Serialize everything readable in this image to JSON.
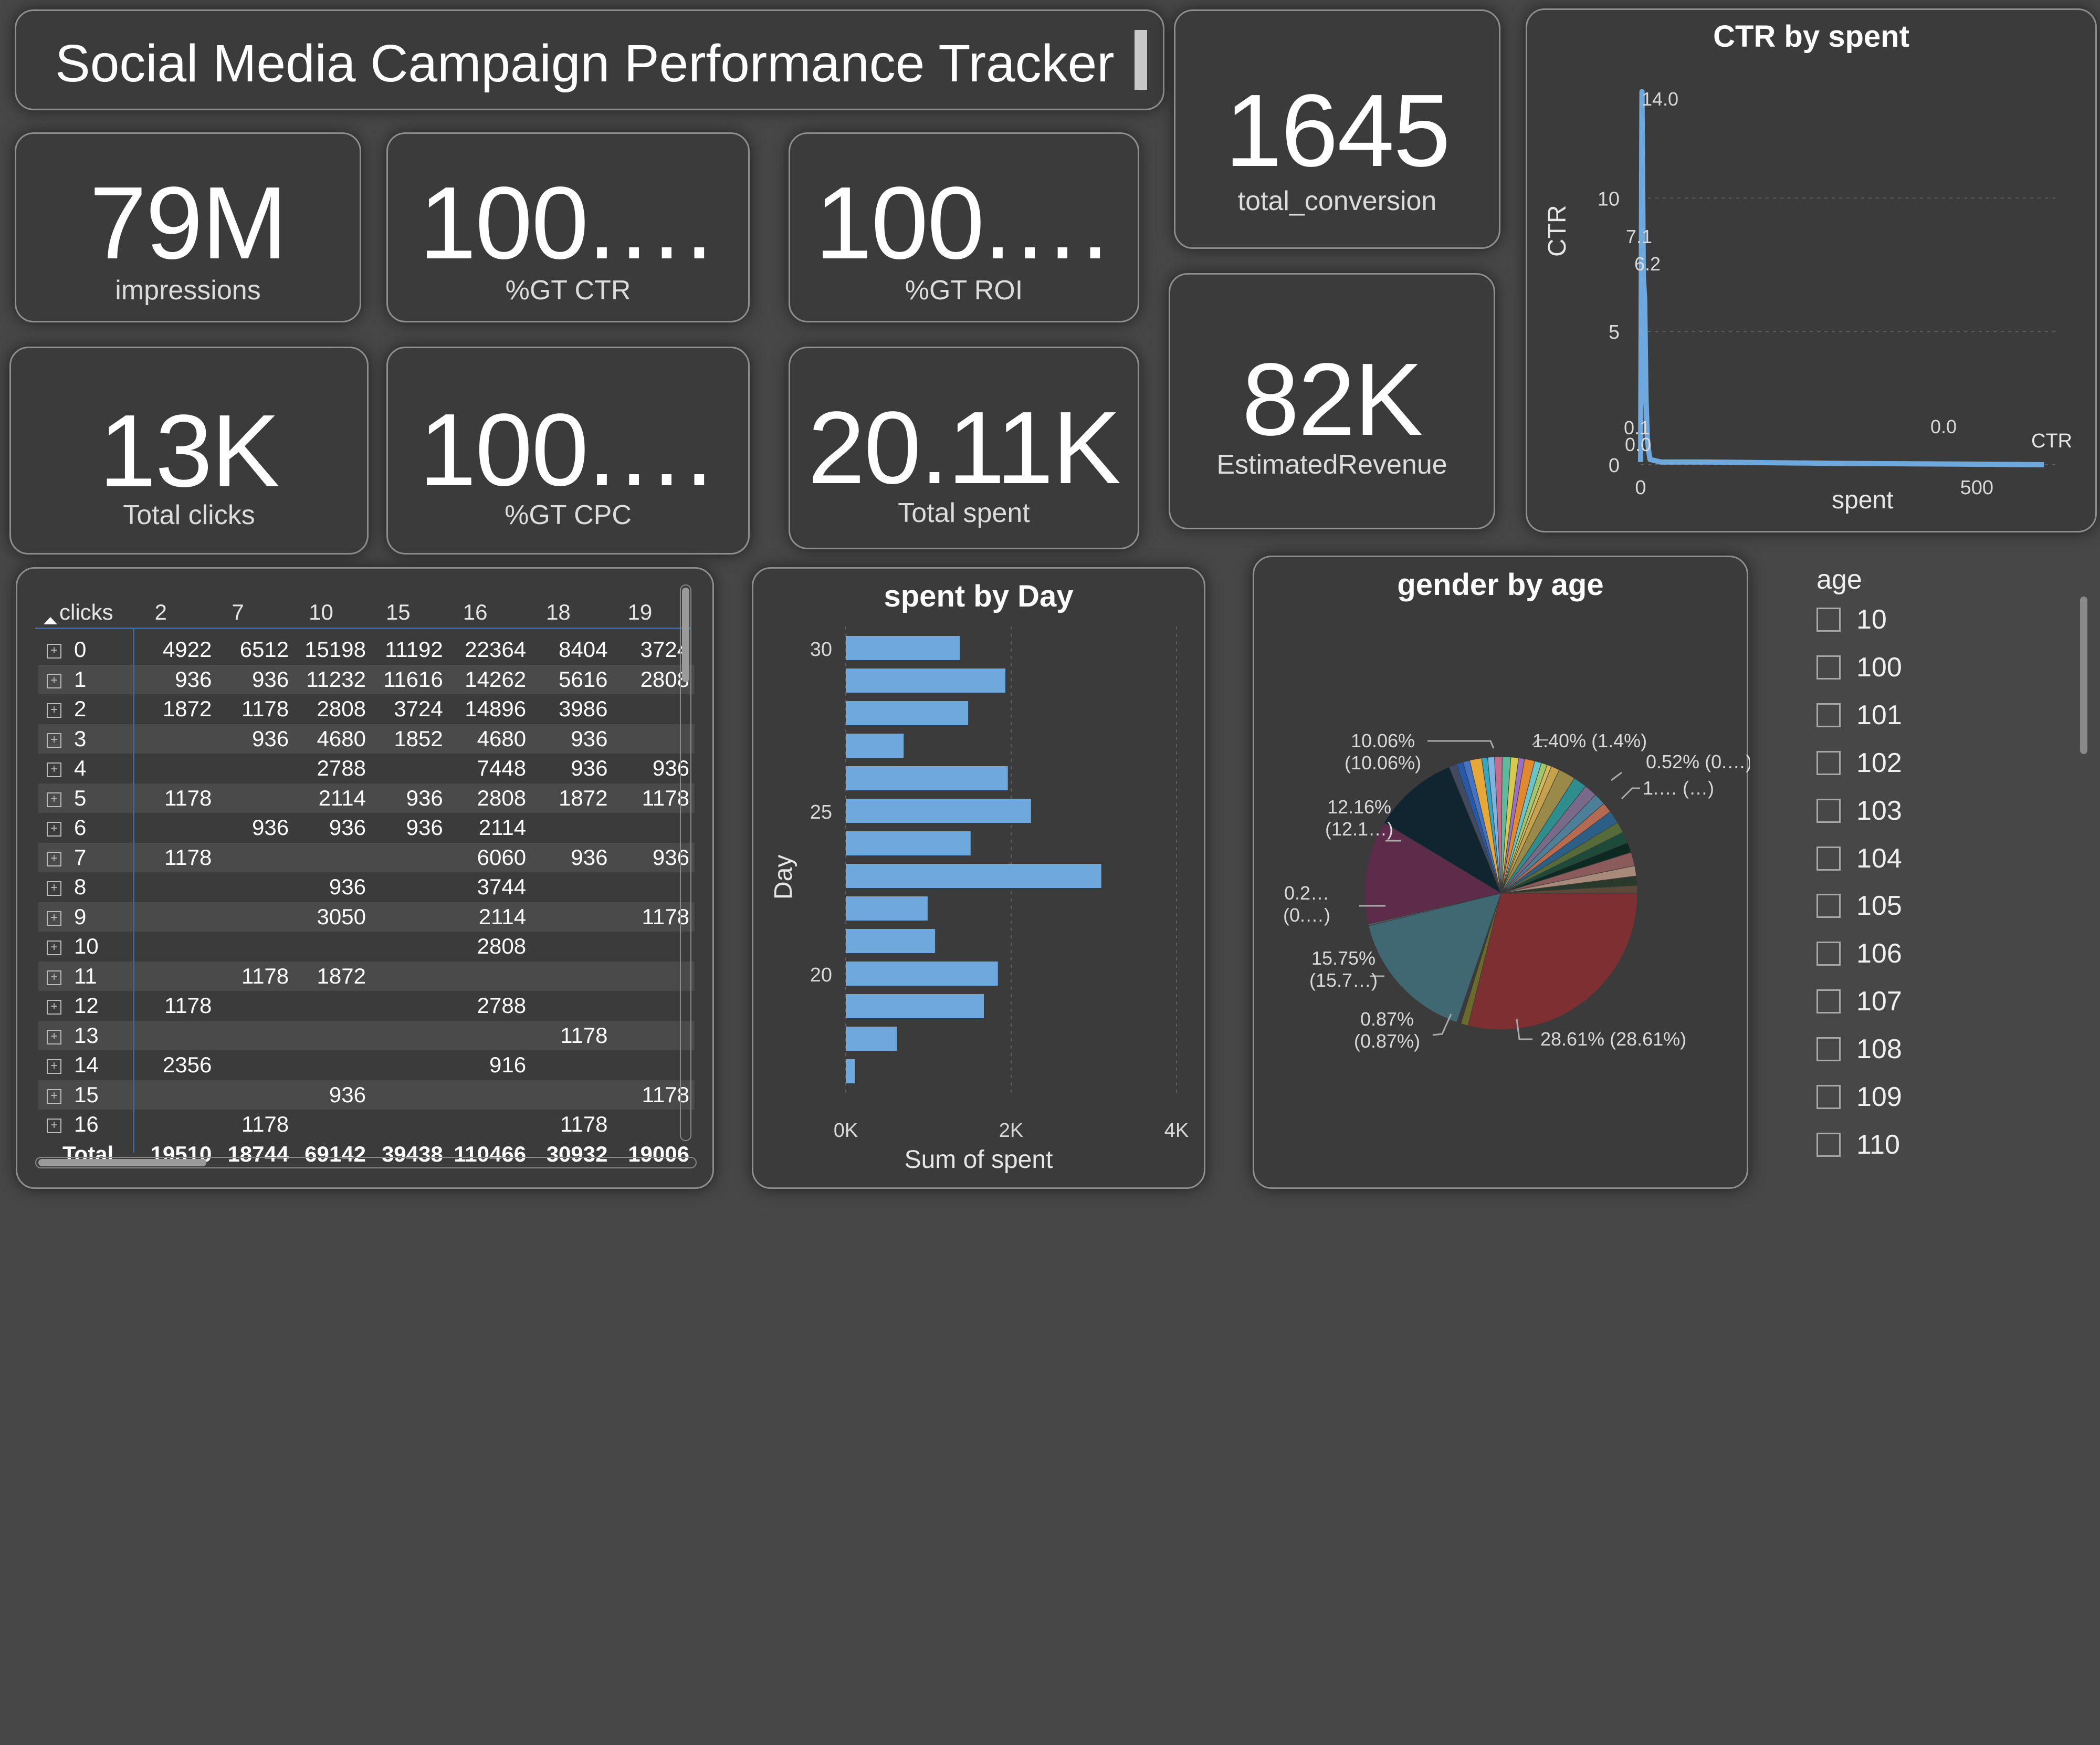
{
  "title": "Social Media Campaign Performance Tracker",
  "kpis": {
    "impressions": {
      "value": "79M",
      "label": "impressions"
    },
    "gt_ctr": {
      "value": "100.…",
      "label": "%GT CTR"
    },
    "gt_roi": {
      "value": "100.…",
      "label": "%GT ROI"
    },
    "total_clicks": {
      "value": "13K",
      "label": "Total clicks"
    },
    "gt_cpc": {
      "value": "100.…",
      "label": "%GT CPC"
    },
    "total_spent": {
      "value": "20.11K",
      "label": "Total spent"
    },
    "total_conversion": {
      "value": "1645",
      "label": "total_conversion"
    },
    "estimated_revenue": {
      "value": "82K",
      "label": "EstimatedRevenue"
    }
  },
  "matrix": {
    "row_header": "clicks",
    "columns": [
      "2",
      "7",
      "10",
      "15",
      "16",
      "18",
      "19"
    ],
    "rows": [
      {
        "label": "0",
        "cells": [
          "4922",
          "6512",
          "15198",
          "11192",
          "22364",
          "8404",
          "3724"
        ]
      },
      {
        "label": "1",
        "cells": [
          "936",
          "936",
          "11232",
          "11616",
          "14262",
          "5616",
          "2808"
        ]
      },
      {
        "label": "2",
        "cells": [
          "1872",
          "1178",
          "2808",
          "3724",
          "14896",
          "3986",
          ""
        ]
      },
      {
        "label": "3",
        "cells": [
          "",
          "936",
          "4680",
          "1852",
          "4680",
          "936",
          ""
        ]
      },
      {
        "label": "4",
        "cells": [
          "",
          "",
          "2788",
          "",
          "7448",
          "936",
          "936"
        ]
      },
      {
        "label": "5",
        "cells": [
          "1178",
          "",
          "2114",
          "936",
          "2808",
          "1872",
          "1178"
        ]
      },
      {
        "label": "6",
        "cells": [
          "",
          "936",
          "936",
          "936",
          "2114",
          "",
          ""
        ]
      },
      {
        "label": "7",
        "cells": [
          "1178",
          "",
          "",
          "",
          "6060",
          "936",
          "936"
        ]
      },
      {
        "label": "8",
        "cells": [
          "",
          "",
          "936",
          "",
          "3744",
          "",
          ""
        ]
      },
      {
        "label": "9",
        "cells": [
          "",
          "",
          "3050",
          "",
          "2114",
          "",
          "1178"
        ]
      },
      {
        "label": "10",
        "cells": [
          "",
          "",
          "",
          "",
          "2808",
          "",
          ""
        ]
      },
      {
        "label": "11",
        "cells": [
          "",
          "1178",
          "1872",
          "",
          "",
          "",
          ""
        ]
      },
      {
        "label": "12",
        "cells": [
          "1178",
          "",
          "",
          "",
          "2788",
          "",
          ""
        ]
      },
      {
        "label": "13",
        "cells": [
          "",
          "",
          "",
          "",
          "",
          "1178",
          ""
        ]
      },
      {
        "label": "14",
        "cells": [
          "2356",
          "",
          "",
          "",
          "916",
          "",
          ""
        ]
      },
      {
        "label": "15",
        "cells": [
          "",
          "",
          "936",
          "",
          "",
          "",
          "1178"
        ]
      },
      {
        "label": "16",
        "cells": [
          "",
          "1178",
          "",
          "",
          "",
          "1178",
          ""
        ]
      }
    ],
    "total": {
      "label": "Total",
      "cells": [
        "19510",
        "18744",
        "69142",
        "39438",
        "110466",
        "30932",
        "19006"
      ]
    }
  },
  "ctr_chart": {
    "title": "CTR by spent",
    "xlabel": "spent",
    "ylabel": "CTR",
    "legend_label": "CTR",
    "y_ticks": [
      "0",
      "5",
      "10"
    ],
    "x_ticks": [
      "0",
      "500"
    ],
    "data_labels": [
      "14.0",
      "7.1",
      "6.2",
      "0.1",
      "0.0",
      "0.0"
    ]
  },
  "bar_chart": {
    "title": "spent by Day",
    "xlabel": "Sum of spent",
    "ylabel": "Day",
    "x_ticks": [
      "0K",
      "2K",
      "4K"
    ],
    "y_ticks": [
      "20",
      "25",
      "30"
    ]
  },
  "pie_chart": {
    "title": "gender by age",
    "labels": [
      {
        "l1": "10.06%",
        "l2": "(10.06%)"
      },
      {
        "l1": "1.40% (1.4%)",
        "l2": ""
      },
      {
        "l1": "0.52% (0.…)",
        "l2": ""
      },
      {
        "l1": "1.… (…)",
        "l2": ""
      },
      {
        "l1": "12.16%",
        "l2": "(12.1…)"
      },
      {
        "l1": "0.2…",
        "l2": "(0.…)"
      },
      {
        "l1": "15.75%",
        "l2": "(15.7…)"
      },
      {
        "l1": "0.87%",
        "l2": "(0.87%)"
      },
      {
        "l1": "28.61% (28.61%)",
        "l2": ""
      }
    ]
  },
  "slicer": {
    "title": "age",
    "items": [
      "10",
      "100",
      "101",
      "102",
      "103",
      "104",
      "105",
      "106",
      "107",
      "108",
      "109",
      "110"
    ]
  },
  "chart_data": [
    {
      "type": "line",
      "title": "CTR by spent",
      "xlabel": "spent",
      "ylabel": "CTR",
      "x": [
        0,
        2,
        4,
        6,
        8,
        10,
        12,
        14,
        30,
        100,
        300,
        500,
        600
      ],
      "series": [
        {
          "name": "CTR",
          "values": [
            0.1,
            14.0,
            7.1,
            6.2,
            2.5,
            1.0,
            0.5,
            0.2,
            0.1,
            0.1,
            0.05,
            0.02,
            0.0
          ]
        }
      ],
      "xlim": [
        0,
        620
      ],
      "ylim": [
        0,
        14.5
      ],
      "grid": true,
      "legend": "right"
    },
    {
      "type": "bar",
      "orientation": "horizontal",
      "title": "spent by Day",
      "xlabel": "Sum of spent",
      "ylabel": "Day",
      "categories": [
        30,
        29,
        28,
        27,
        26,
        25,
        24,
        23,
        22,
        21,
        20,
        19,
        18,
        17
      ],
      "values": [
        1380,
        1930,
        1480,
        700,
        1960,
        2240,
        1510,
        3090,
        990,
        1080,
        1840,
        1670,
        620,
        110
      ],
      "xlim": [
        0,
        4000
      ],
      "grid": true
    },
    {
      "type": "pie",
      "title": "gender by age",
      "slices": [
        {
          "value": 28.61,
          "color": "#7d2f31"
        },
        {
          "value": 0.87,
          "color": "#6b6a2a"
        },
        {
          "value": 0.5,
          "color": "#3a3a3a"
        },
        {
          "value": 15.75,
          "color": "#3f6873"
        },
        {
          "value": 0.2,
          "color": "#5a5a6a"
        },
        {
          "value": 12.16,
          "color": "#5c2c4a"
        },
        {
          "value": 10.06,
          "color": "#102530"
        },
        {
          "value": 0.9,
          "color": "#404a60"
        },
        {
          "value": 0.8,
          "color": "#2659a8"
        },
        {
          "value": 0.8,
          "color": "#4472c4"
        },
        {
          "value": 1.4,
          "color": "#e7a83a"
        },
        {
          "value": 0.7,
          "color": "#33a6c4"
        },
        {
          "value": 0.8,
          "color": "#7fb4e0"
        },
        {
          "value": 0.9,
          "color": "#c46d8f"
        },
        {
          "value": 1.0,
          "color": "#5dbb9c"
        },
        {
          "value": 0.9,
          "color": "#d6c94d"
        },
        {
          "value": 0.7,
          "color": "#9b6fc2"
        },
        {
          "value": 1.2,
          "color": "#e1892f"
        },
        {
          "value": 0.8,
          "color": "#6ac3c8"
        },
        {
          "value": 0.7,
          "color": "#a2c76a"
        },
        {
          "value": 0.52,
          "color": "#d4b85a"
        },
        {
          "value": 1.0,
          "color": "#c7a24c"
        },
        {
          "value": 2.0,
          "color": "#9a8a4a"
        },
        {
          "value": 1.6,
          "color": "#2e8e8e"
        },
        {
          "value": 1.5,
          "color": "#7a6a8a"
        },
        {
          "value": 1.4,
          "color": "#4d7f99"
        },
        {
          "value": 1.2,
          "color": "#b56b52"
        },
        {
          "value": 1.5,
          "color": "#2d5f86"
        },
        {
          "value": 1.3,
          "color": "#566b3a"
        },
        {
          "value": 1.3,
          "color": "#1e4a3a"
        },
        {
          "value": 1.2,
          "color": "#0c2a22"
        },
        {
          "value": 1.6,
          "color": "#8b5a5a"
        },
        {
          "value": 1.2,
          "color": "#a88a7a"
        },
        {
          "value": 1.1,
          "color": "#2a3a2a"
        },
        {
          "value": 0.9,
          "color": "#5a4a3a"
        }
      ]
    }
  ]
}
